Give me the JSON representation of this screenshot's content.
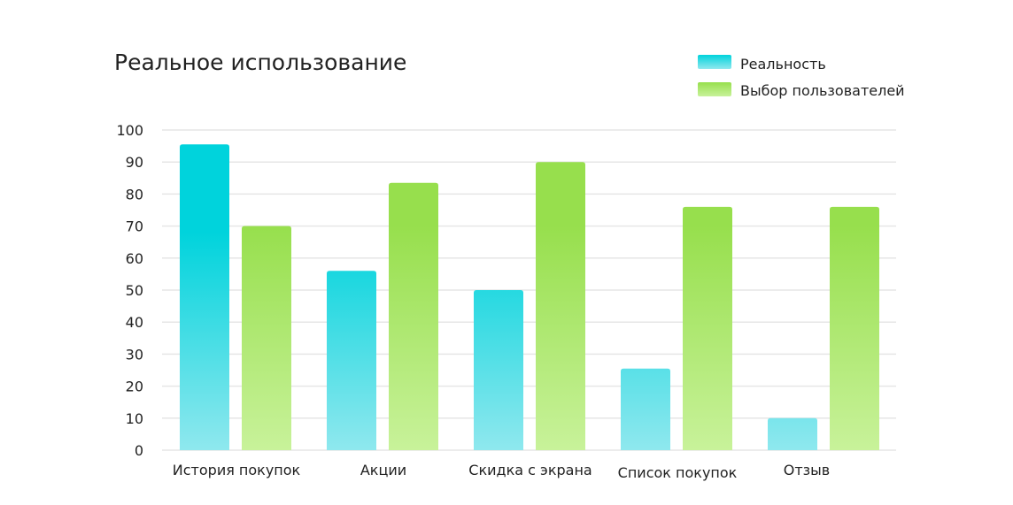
{
  "chart_data": {
    "type": "bar",
    "title": "Реальное использование",
    "xlabel": "",
    "ylabel": "",
    "ylim": [
      0,
      100
    ],
    "yticks": [
      0,
      10,
      20,
      30,
      40,
      50,
      60,
      70,
      80,
      90,
      100
    ],
    "grid": true,
    "legend_position": "top-right",
    "categories": [
      "История покупок",
      "Акции",
      "Скидка с экрана",
      "Список покупок",
      "Отзыв"
    ],
    "series": [
      {
        "name": "Реальность",
        "values": [
          95.5,
          56,
          50,
          25.5,
          10
        ],
        "color_top": "#00d3dc",
        "color_bottom": "#8fe8ee"
      },
      {
        "name": "Выбор пользователей",
        "values": [
          70,
          83.5,
          90,
          76,
          76
        ],
        "color_top": "#97df4d",
        "color_bottom": "#c8f29a"
      }
    ]
  }
}
